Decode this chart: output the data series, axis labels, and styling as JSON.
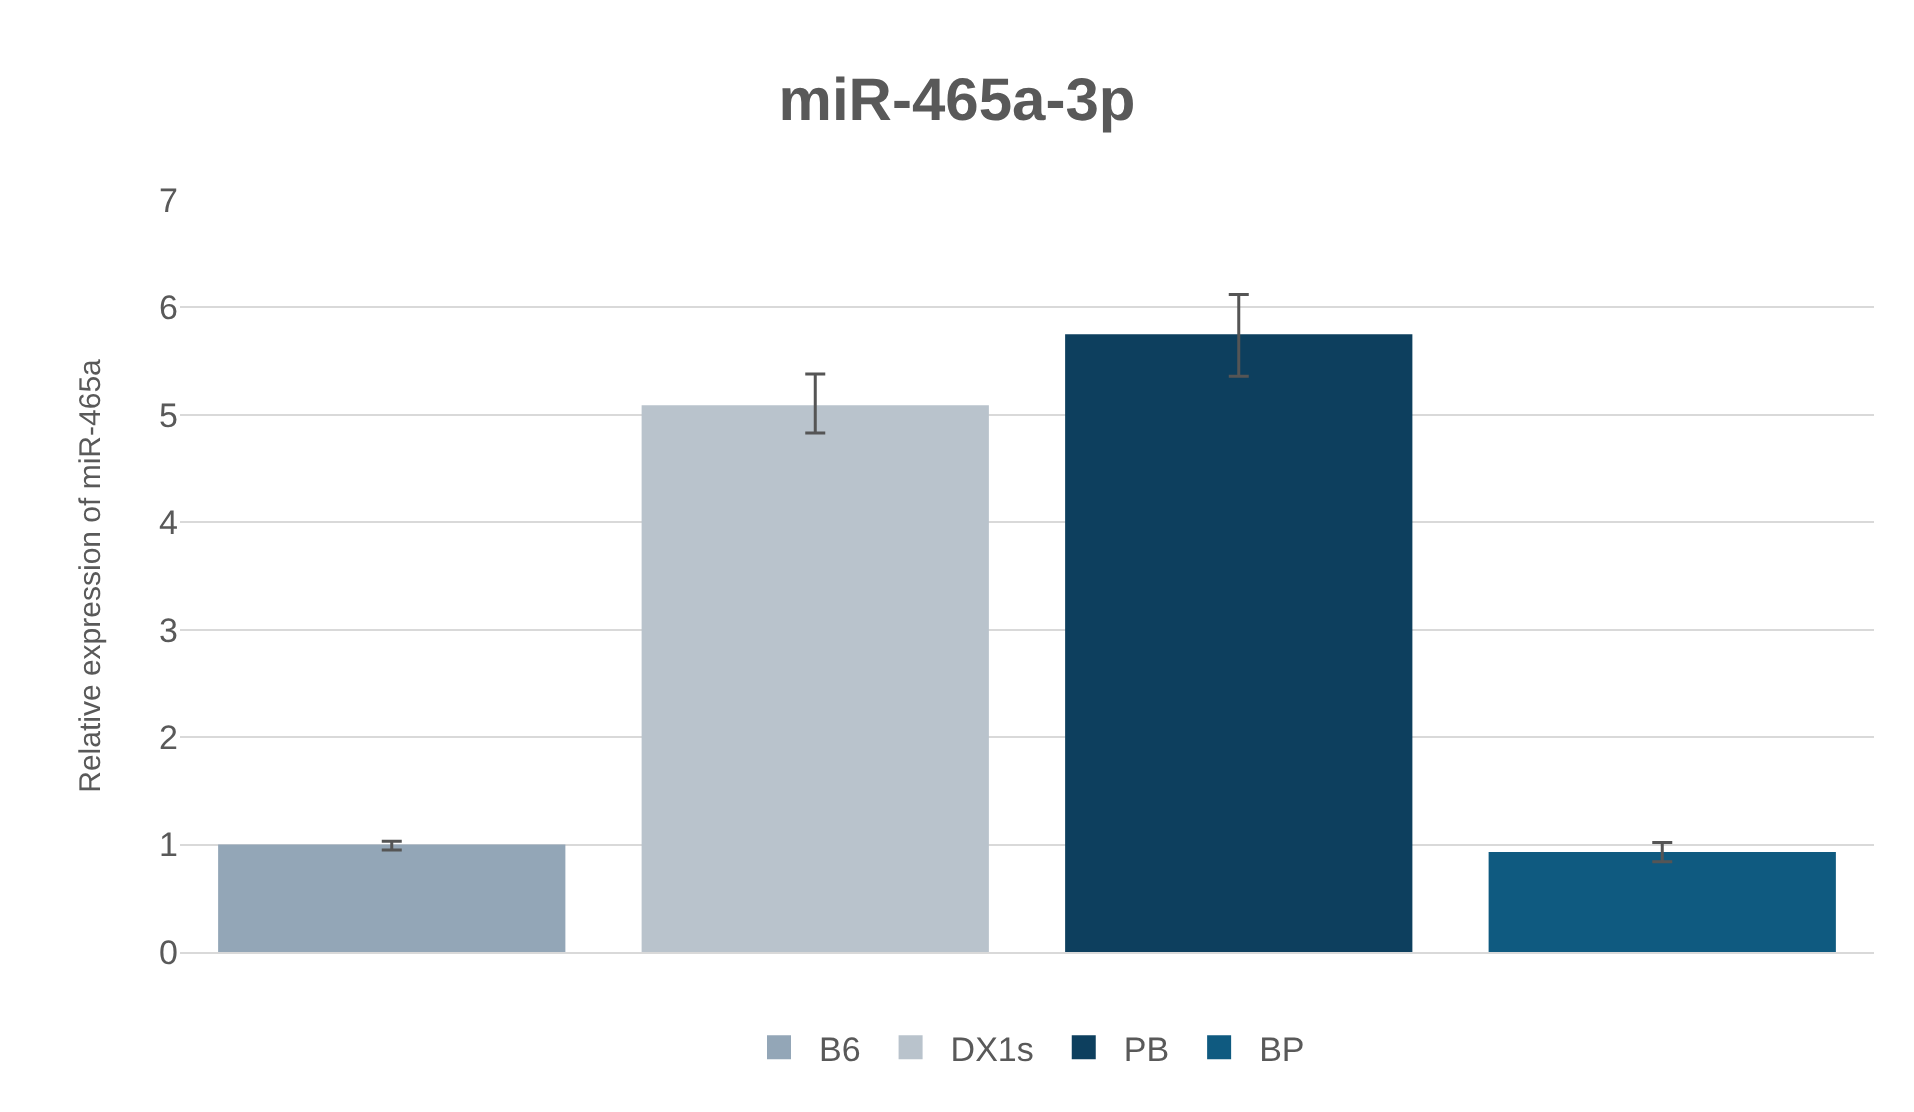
{
  "chart_data": {
    "type": "bar",
    "title": "miR-465a-3p",
    "ylabel": "Relative expression of miR-465a",
    "categories": [
      null,
      null,
      null,
      null
    ],
    "series": [
      {
        "name": "B6",
        "color": "#93a6b7",
        "values": [
          1.0,
          null,
          null,
          null
        ],
        "errors": [
          [
            0.95,
            1.03
          ],
          null,
          null,
          null
        ]
      },
      {
        "name": "DX1s",
        "color": "#b9c3cc",
        "values": [
          null,
          5.09,
          null,
          null
        ],
        "errors": [
          null,
          [
            4.83,
            5.38
          ],
          null,
          null
        ]
      },
      {
        "name": "PB",
        "color": "#0d3f5e",
        "values": [
          null,
          null,
          5.75,
          null
        ],
        "errors": [
          null,
          null,
          [
            5.36,
            6.12
          ],
          null
        ]
      },
      {
        "name": "BP",
        "color": "#0f5a80",
        "values": [
          null,
          null,
          null,
          0.93
        ],
        "errors": [
          null,
          null,
          null,
          [
            0.84,
            1.02
          ]
        ]
      }
    ],
    "ylim": [
      0,
      7
    ],
    "yticks": [
      0,
      1,
      2,
      3,
      4,
      5,
      6,
      7
    ],
    "grid": "y",
    "legend": "bottom"
  }
}
